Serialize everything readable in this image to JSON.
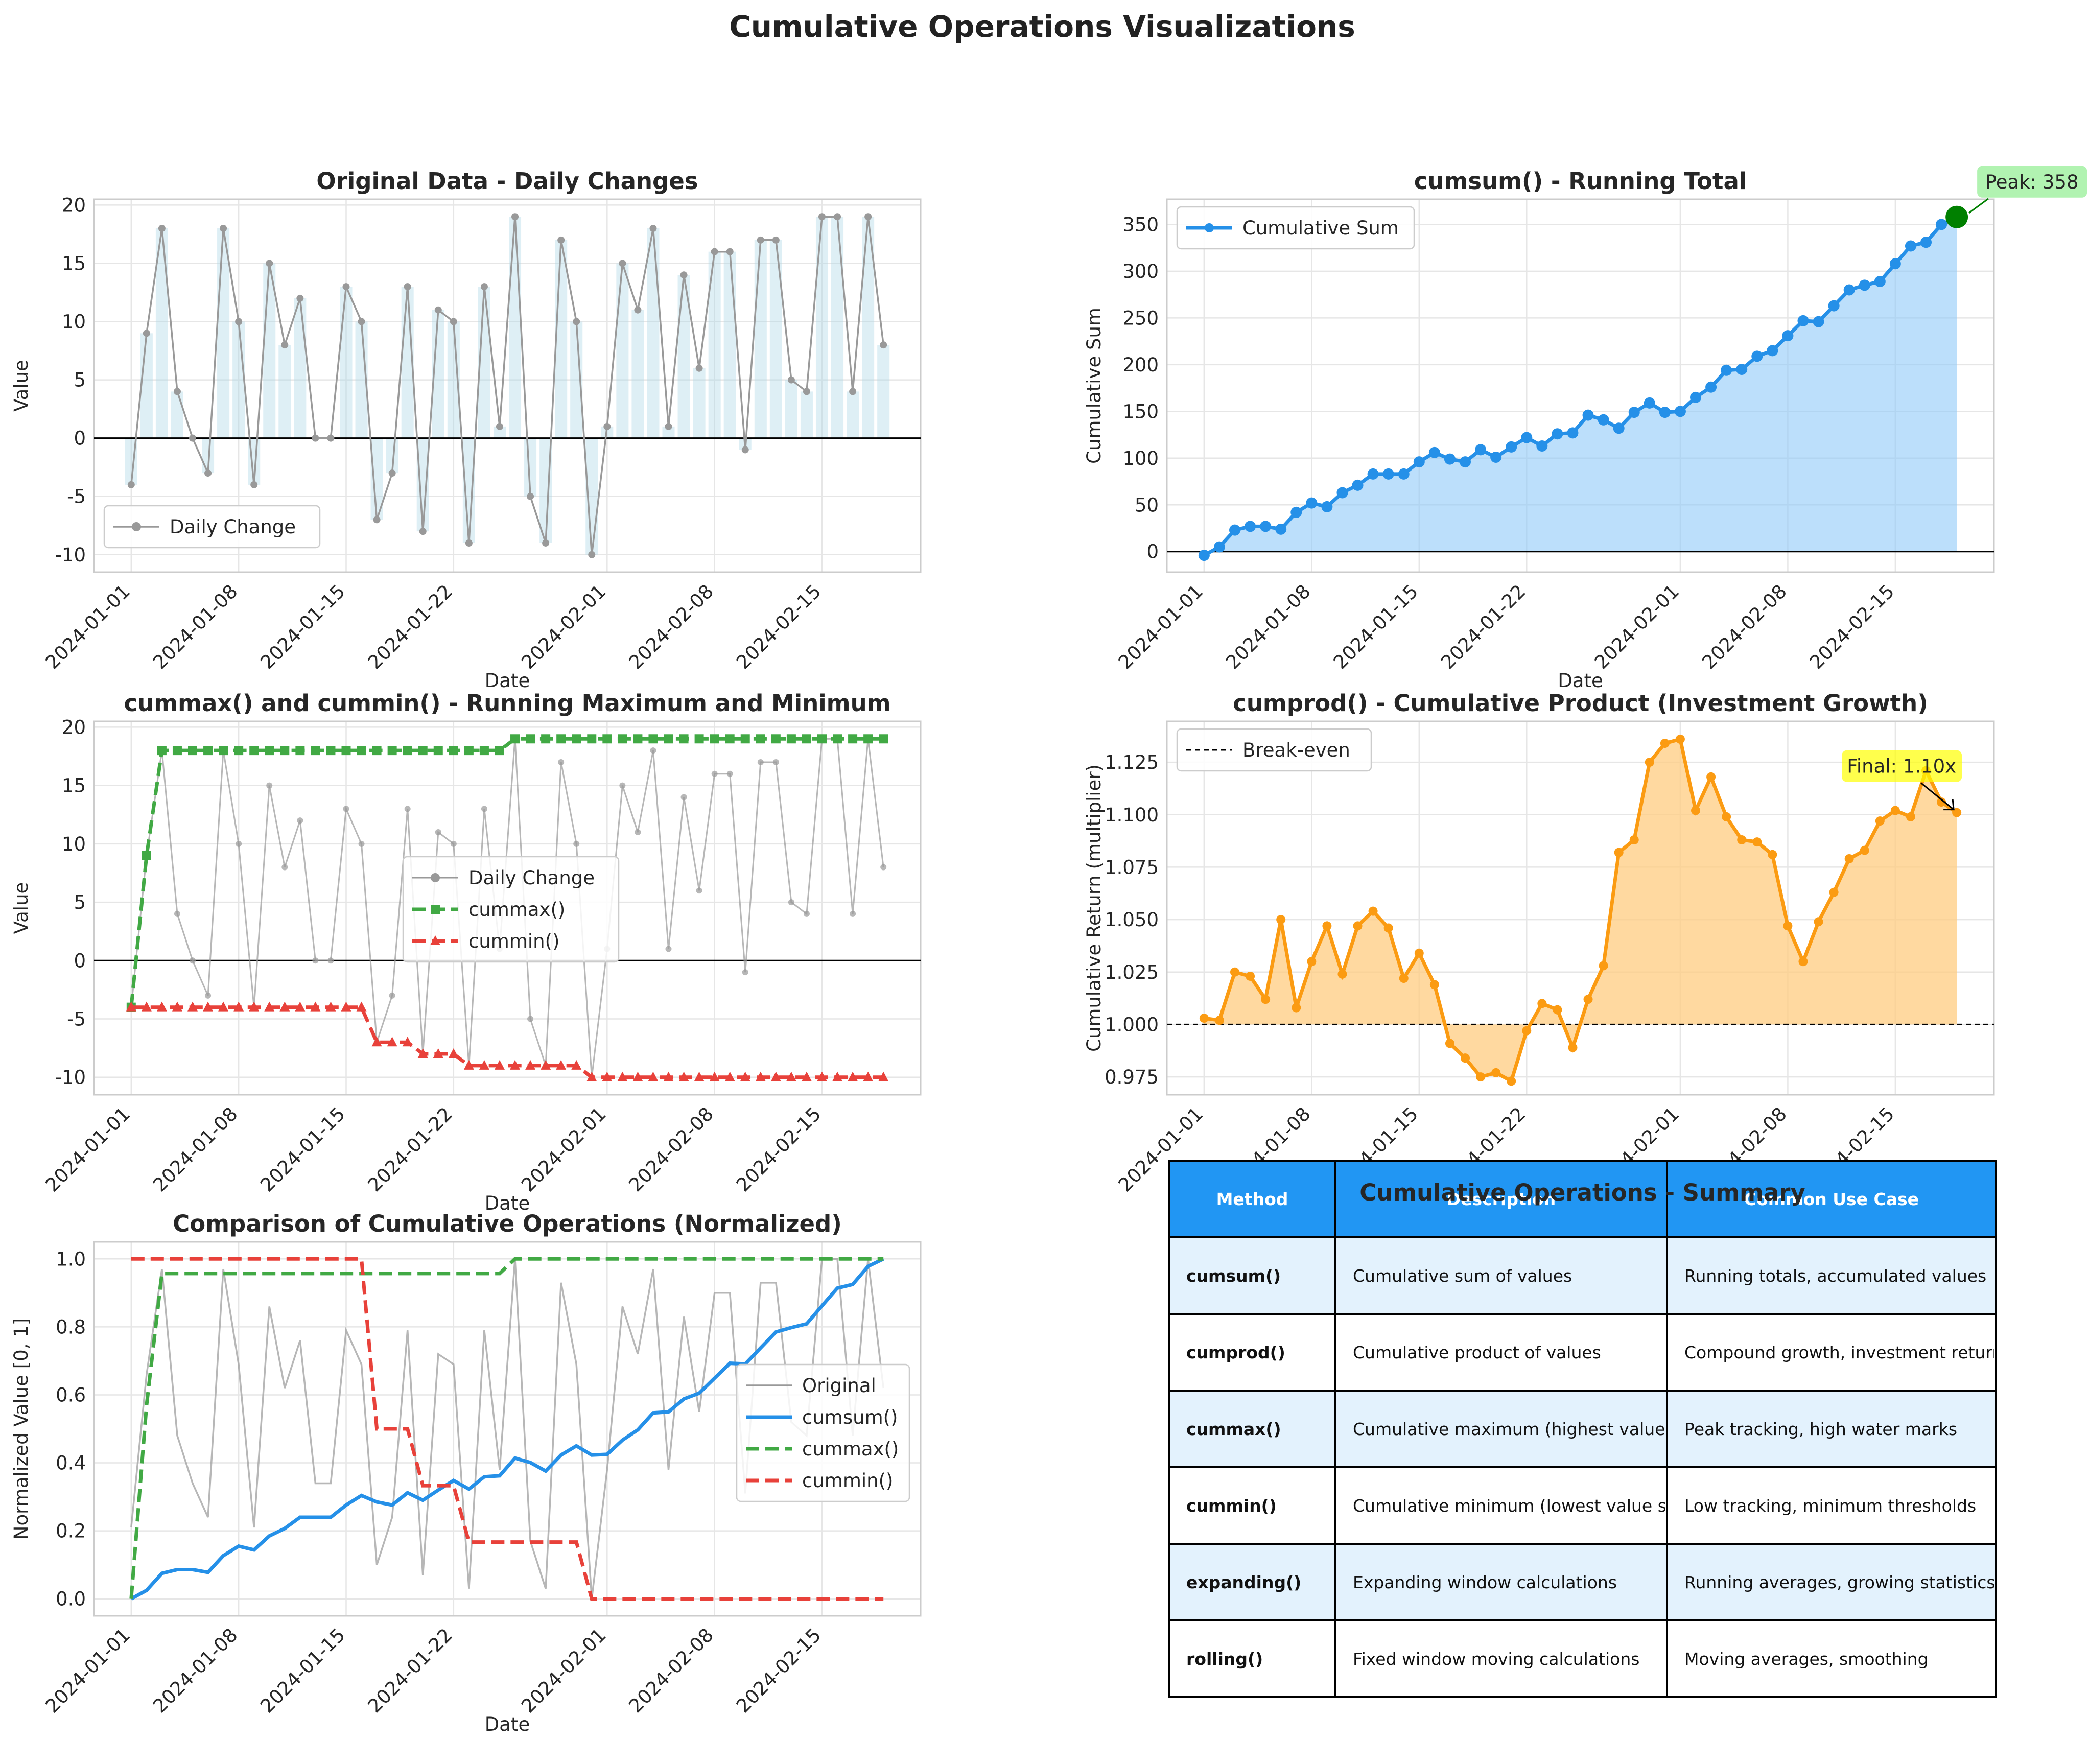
{
  "figure_title": "Cumulative Operations Visualizations",
  "colors": {
    "gray": "#999999",
    "blue": "#2590e8",
    "green": "#41a944",
    "red": "#e8413a",
    "orange": "#fb9b12",
    "bar": "#add8e6",
    "blue_fill": "#90caf9",
    "orange_fill": "#ffcc80",
    "header": "#2196f3",
    "row_alt": "#e3f2fd"
  },
  "dates": [
    "2024-01-01",
    "2024-01-02",
    "2024-01-03",
    "2024-01-04",
    "2024-01-05",
    "2024-01-06",
    "2024-01-07",
    "2024-01-08",
    "2024-01-09",
    "2024-01-10",
    "2024-01-11",
    "2024-01-12",
    "2024-01-13",
    "2024-01-14",
    "2024-01-15",
    "2024-01-16",
    "2024-01-17",
    "2024-01-18",
    "2024-01-19",
    "2024-01-20",
    "2024-01-21",
    "2024-01-22",
    "2024-01-23",
    "2024-01-24",
    "2024-01-25",
    "2024-01-26",
    "2024-01-27",
    "2024-01-28",
    "2024-01-29",
    "2024-01-30",
    "2024-01-31",
    "2024-02-01",
    "2024-02-02",
    "2024-02-03",
    "2024-02-04",
    "2024-02-05",
    "2024-02-06",
    "2024-02-07",
    "2024-02-08",
    "2024-02-09",
    "2024-02-10",
    "2024-02-11",
    "2024-02-12",
    "2024-02-13",
    "2024-02-14",
    "2024-02-15",
    "2024-02-16",
    "2024-02-17",
    "2024-02-18",
    "2024-02-19"
  ],
  "chart_data": [
    {
      "id": "daily",
      "type": "line",
      "title": "Original Data - Daily Changes",
      "xlabel": "Date",
      "ylabel": "Value",
      "ylim": [
        -11.5,
        20.5
      ],
      "yticks": [
        -10,
        -5,
        0,
        5,
        10,
        15,
        20
      ],
      "xticks": [
        "2024-01-01",
        "2024-01-08",
        "2024-01-15",
        "2024-01-22",
        "2024-02-01",
        "2024-02-08",
        "2024-02-15"
      ],
      "grid": true,
      "legend": "lower left",
      "series": [
        {
          "name": "Daily Change",
          "values": [
            -4,
            9,
            18,
            4,
            0,
            -3,
            18,
            10,
            -4,
            15,
            8,
            12,
            0,
            0,
            13,
            10,
            -7,
            -3,
            13,
            -8,
            11,
            10,
            -9,
            13,
            1,
            19,
            -5,
            -9,
            17,
            10,
            -10,
            1,
            15,
            11,
            18,
            1,
            14,
            6,
            16,
            16,
            -1,
            17,
            17,
            5,
            4,
            19,
            19,
            4,
            19,
            8
          ]
        }
      ]
    },
    {
      "id": "cumsum",
      "type": "area",
      "title": "cumsum() - Running Total",
      "xlabel": "Date",
      "ylabel": "Cumulative Sum",
      "ylim": [
        -22,
        377
      ],
      "yticks": [
        0,
        50,
        100,
        150,
        200,
        250,
        300,
        350
      ],
      "xticks": [
        "2024-01-01",
        "2024-01-08",
        "2024-01-15",
        "2024-01-22",
        "2024-02-01",
        "2024-02-08",
        "2024-02-15"
      ],
      "grid": true,
      "legend": "upper left",
      "series": [
        {
          "name": "Cumulative Sum",
          "values": [
            -4,
            5,
            23,
            27,
            27,
            24,
            42,
            52,
            48,
            63,
            71,
            83,
            83,
            83,
            96,
            106,
            99,
            96,
            109,
            101,
            112,
            122,
            113,
            126,
            127,
            146,
            141,
            132,
            149,
            159,
            149,
            150,
            165,
            176,
            194,
            195,
            209,
            215,
            231,
            247,
            246,
            263,
            280,
            285,
            289,
            308,
            327,
            331,
            350,
            358
          ]
        }
      ],
      "annotation": "Peak: 358"
    },
    {
      "id": "cummaxmin",
      "type": "line",
      "title": "cummax() and cummin() - Running Maximum and Minimum",
      "xlabel": "Date",
      "ylabel": "Value",
      "ylim": [
        -11.5,
        20.5
      ],
      "yticks": [
        -10,
        -5,
        0,
        5,
        10,
        15,
        20
      ],
      "xticks": [
        "2024-01-01",
        "2024-01-08",
        "2024-01-15",
        "2024-01-22",
        "2024-02-01",
        "2024-02-08",
        "2024-02-15"
      ],
      "grid": true,
      "legend": "center",
      "series": [
        {
          "name": "Daily Change",
          "values": [
            -4,
            9,
            18,
            4,
            0,
            -3,
            18,
            10,
            -4,
            15,
            8,
            12,
            0,
            0,
            13,
            10,
            -7,
            -3,
            13,
            -8,
            11,
            10,
            -9,
            13,
            1,
            19,
            -5,
            -9,
            17,
            10,
            -10,
            1,
            15,
            11,
            18,
            1,
            14,
            6,
            16,
            16,
            -1,
            17,
            17,
            5,
            4,
            19,
            19,
            4,
            19,
            8
          ]
        },
        {
          "name": "cummax()",
          "values": [
            -4,
            9,
            18,
            18,
            18,
            18,
            18,
            18,
            18,
            18,
            18,
            18,
            18,
            18,
            18,
            18,
            18,
            18,
            18,
            18,
            18,
            18,
            18,
            18,
            18,
            19,
            19,
            19,
            19,
            19,
            19,
            19,
            19,
            19,
            19,
            19,
            19,
            19,
            19,
            19,
            19,
            19,
            19,
            19,
            19,
            19,
            19,
            19,
            19,
            19
          ]
        },
        {
          "name": "cummin()",
          "values": [
            -4,
            -4,
            -4,
            -4,
            -4,
            -4,
            -4,
            -4,
            -4,
            -4,
            -4,
            -4,
            -4,
            -4,
            -4,
            -4,
            -7,
            -7,
            -7,
            -8,
            -8,
            -8,
            -9,
            -9,
            -9,
            -9,
            -9,
            -9,
            -9,
            -9,
            -10,
            -10,
            -10,
            -10,
            -10,
            -10,
            -10,
            -10,
            -10,
            -10,
            -10,
            -10,
            -10,
            -10,
            -10,
            -10,
            -10,
            -10,
            -10,
            -10
          ]
        }
      ]
    },
    {
      "id": "cumprod",
      "type": "area",
      "title": "cumprod() - Cumulative Product (Investment Growth)",
      "xlabel": "Date",
      "ylabel": "Cumulative Return (multiplier)",
      "ylim": [
        0.9665,
        1.1445
      ],
      "yticks": [
        0.975,
        1.0,
        1.025,
        1.05,
        1.075,
        1.1,
        1.125
      ],
      "ytick_labels": [
        "0.975",
        "1.000",
        "1.025",
        "1.050",
        "1.075",
        "1.100",
        "1.125"
      ],
      "xticks": [
        "2024-01-01",
        "2024-01-08",
        "2024-01-15",
        "2024-01-22",
        "2024-02-01",
        "2024-02-08",
        "2024-02-15"
      ],
      "grid": true,
      "legend": "upper left",
      "baseline": 1.0,
      "series": [
        {
          "name": "Cumulative Return",
          "values": [
            1.003,
            1.002,
            1.025,
            1.023,
            1.012,
            1.05,
            1.008,
            1.03,
            1.047,
            1.024,
            1.047,
            1.054,
            1.046,
            1.022,
            1.034,
            1.019,
            0.991,
            0.984,
            0.975,
            0.977,
            0.973,
            0.997,
            1.01,
            1.007,
            0.989,
            1.012,
            1.028,
            1.082,
            1.088,
            1.125,
            1.134,
            1.136,
            1.102,
            1.118,
            1.099,
            1.088,
            1.087,
            1.081,
            1.047,
            1.03,
            1.049,
            1.063,
            1.079,
            1.083,
            1.097,
            1.102,
            1.099,
            1.121,
            1.106,
            1.101
          ]
        },
        {
          "name": "Break-even",
          "values": [
            1.0
          ]
        }
      ],
      "annotation": "Final: 1.10x"
    },
    {
      "id": "normalized",
      "type": "line",
      "title": "Comparison of Cumulative Operations (Normalized)",
      "xlabel": "Date",
      "ylabel": "Normalized Value [0, 1]",
      "ylim": [
        -0.05,
        1.05
      ],
      "yticks": [
        0.0,
        0.2,
        0.4,
        0.6,
        0.8,
        1.0
      ],
      "ytick_labels": [
        "0.0",
        "0.2",
        "0.4",
        "0.6",
        "0.8",
        "1.0"
      ],
      "xticks": [
        "2024-01-01",
        "2024-01-08",
        "2024-01-15",
        "2024-01-22",
        "2024-02-01",
        "2024-02-08",
        "2024-02-15"
      ],
      "grid": true,
      "legend": "center right",
      "series": [
        {
          "name": "Original",
          "values": [
            0.21,
            0.66,
            0.97,
            0.48,
            0.34,
            0.24,
            0.97,
            0.69,
            0.21,
            0.86,
            0.62,
            0.76,
            0.34,
            0.34,
            0.79,
            0.69,
            0.1,
            0.24,
            0.79,
            0.07,
            0.72,
            0.69,
            0.03,
            0.79,
            0.38,
            1.0,
            0.17,
            0.03,
            0.93,
            0.69,
            0.0,
            0.38,
            0.86,
            0.72,
            0.97,
            0.38,
            0.83,
            0.55,
            0.9,
            0.9,
            0.31,
            0.93,
            0.93,
            0.52,
            0.48,
            1.0,
            1.0,
            0.48,
            1.0,
            0.62
          ]
        },
        {
          "name": "cumsum()",
          "values": [
            0.0,
            0.025,
            0.075,
            0.086,
            0.086,
            0.078,
            0.127,
            0.155,
            0.144,
            0.185,
            0.207,
            0.24,
            0.24,
            0.24,
            0.276,
            0.304,
            0.285,
            0.276,
            0.312,
            0.29,
            0.32,
            0.348,
            0.323,
            0.359,
            0.362,
            0.414,
            0.401,
            0.376,
            0.423,
            0.45,
            0.423,
            0.425,
            0.467,
            0.497,
            0.547,
            0.55,
            0.588,
            0.605,
            0.649,
            0.693,
            0.691,
            0.738,
            0.785,
            0.798,
            0.809,
            0.862,
            0.914,
            0.925,
            0.978,
            1.0
          ]
        },
        {
          "name": "cummax()",
          "values": [
            0.0,
            0.57,
            0.957,
            0.957,
            0.957,
            0.957,
            0.957,
            0.957,
            0.957,
            0.957,
            0.957,
            0.957,
            0.957,
            0.957,
            0.957,
            0.957,
            0.957,
            0.957,
            0.957,
            0.957,
            0.957,
            0.957,
            0.957,
            0.957,
            0.957,
            1.0,
            1.0,
            1.0,
            1.0,
            1.0,
            1.0,
            1.0,
            1.0,
            1.0,
            1.0,
            1.0,
            1.0,
            1.0,
            1.0,
            1.0,
            1.0,
            1.0,
            1.0,
            1.0,
            1.0,
            1.0,
            1.0,
            1.0,
            1.0,
            1.0
          ]
        },
        {
          "name": "cummin()",
          "values": [
            1.0,
            1.0,
            1.0,
            1.0,
            1.0,
            1.0,
            1.0,
            1.0,
            1.0,
            1.0,
            1.0,
            1.0,
            1.0,
            1.0,
            1.0,
            1.0,
            0.5,
            0.5,
            0.5,
            0.333,
            0.333,
            0.333,
            0.167,
            0.167,
            0.167,
            0.167,
            0.167,
            0.167,
            0.167,
            0.167,
            0.0,
            0.0,
            0.0,
            0.0,
            0.0,
            0.0,
            0.0,
            0.0,
            0.0,
            0.0,
            0.0,
            0.0,
            0.0,
            0.0,
            0.0,
            0.0,
            0.0,
            0.0,
            0.0,
            0.0
          ]
        }
      ]
    },
    {
      "id": "summary",
      "type": "table",
      "title": "Cumulative Operations - Summary",
      "columns": [
        "Method",
        "Description",
        "Common Use Case"
      ],
      "rows": [
        [
          "cumsum()",
          "Cumulative sum of values",
          "Running totals, accumulated values"
        ],
        [
          "cumprod()",
          "Cumulative product of values",
          "Compound growth, investment returns"
        ],
        [
          "cummax()",
          "Cumulative maximum (highest value so far)",
          "Peak tracking, high water marks"
        ],
        [
          "cummin()",
          "Cumulative minimum (lowest value so far)",
          "Low tracking, minimum thresholds"
        ],
        [
          "expanding()",
          "Expanding window calculations",
          "Running averages, growing statistics"
        ],
        [
          "rolling()",
          "Fixed window moving calculations",
          "Moving averages, smoothing"
        ]
      ]
    }
  ]
}
